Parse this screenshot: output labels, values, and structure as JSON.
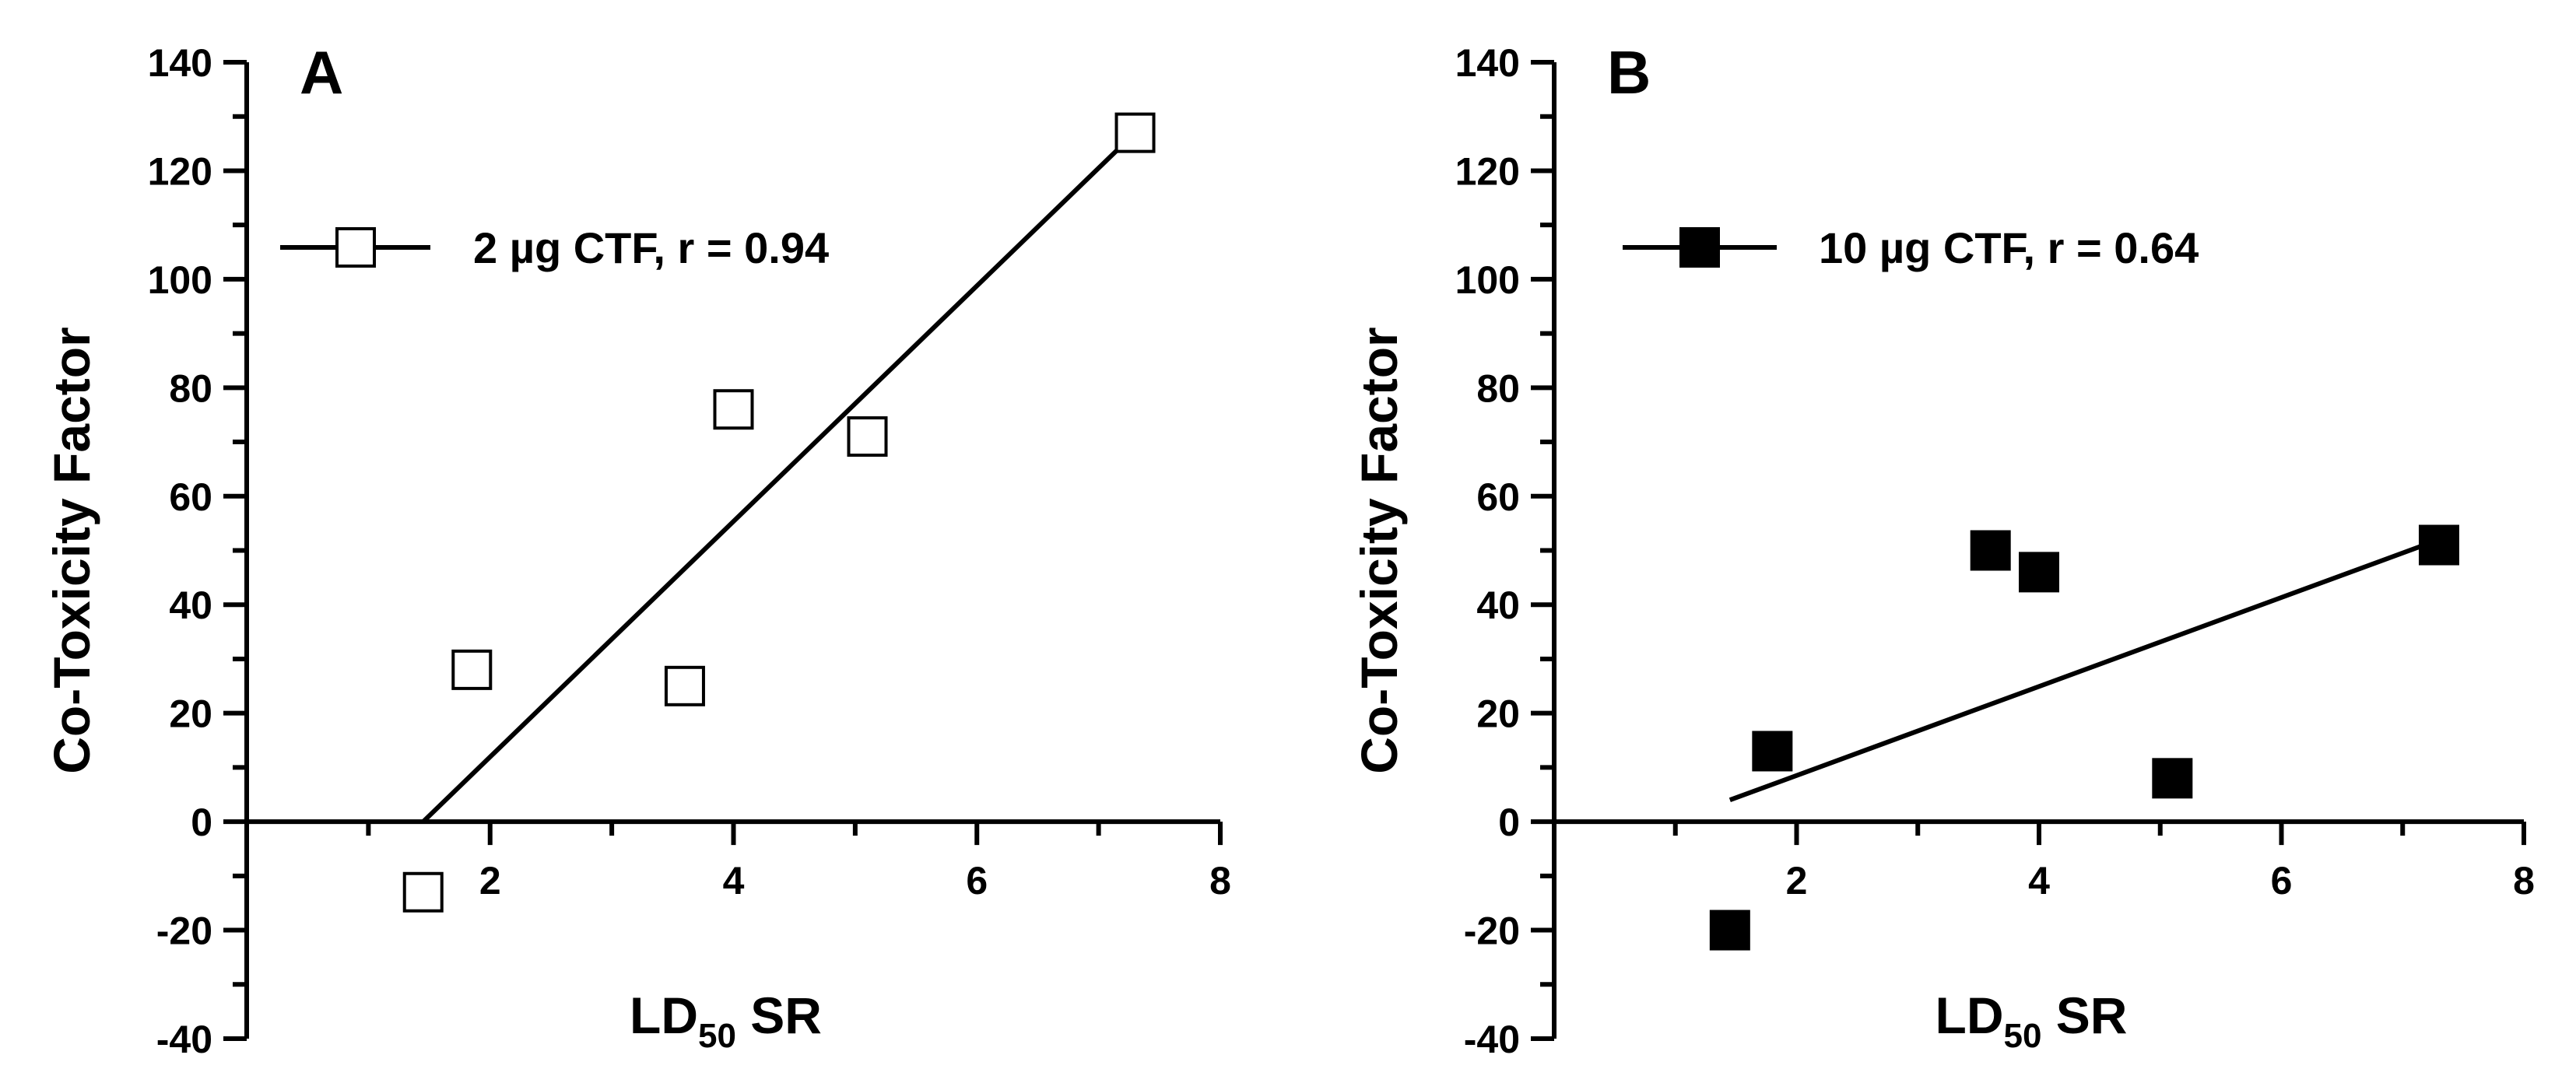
{
  "chart_data": [
    {
      "type": "scatter",
      "panel": "A",
      "xlabel_main": "LD",
      "xlabel_sub": "50",
      "xlabel_tail": " SR",
      "ylabel": "Co-Toxicity Factor",
      "xlim": [
        0,
        8
      ],
      "ylim": [
        -40,
        140
      ],
      "x_ticks": [
        2,
        4,
        6,
        8
      ],
      "y_ticks": [
        -40,
        -20,
        0,
        20,
        40,
        60,
        80,
        100,
        120,
        140
      ],
      "x_tick_labels": [
        "2",
        "4",
        "6",
        "8"
      ],
      "y_tick_labels": [
        "-40",
        "-20",
        "0",
        "20",
        "40",
        "60",
        "80",
        "100",
        "120",
        "140"
      ],
      "legend": "2 µg CTF, r = 0.94",
      "marker": "open-square",
      "points": [
        {
          "x": 1.45,
          "y": -13
        },
        {
          "x": 1.85,
          "y": 28
        },
        {
          "x": 3.6,
          "y": 25
        },
        {
          "x": 4.0,
          "y": 76
        },
        {
          "x": 5.1,
          "y": 71
        },
        {
          "x": 7.3,
          "y": 127
        }
      ],
      "fit_line": {
        "x": [
          1.45,
          7.3
        ],
        "y": [
          0,
          127
        ]
      }
    },
    {
      "type": "scatter",
      "panel": "B",
      "xlabel_main": "LD",
      "xlabel_sub": "50",
      "xlabel_tail": " SR",
      "ylabel": "Co-Toxicity Factor",
      "xlim": [
        0,
        8
      ],
      "ylim": [
        -40,
        140
      ],
      "x_ticks": [
        2,
        4,
        6,
        8
      ],
      "y_ticks": [
        -40,
        -20,
        0,
        20,
        40,
        60,
        80,
        100,
        120,
        140
      ],
      "x_tick_labels": [
        "2",
        "4",
        "6",
        "8"
      ],
      "y_tick_labels": [
        "-40",
        "-20",
        "0",
        "20",
        "40",
        "60",
        "80",
        "100",
        "120",
        "140"
      ],
      "legend": "10 µg CTF, r = 0.64",
      "marker": "filled-square",
      "points": [
        {
          "x": 1.45,
          "y": -20
        },
        {
          "x": 1.8,
          "y": 13
        },
        {
          "x": 3.6,
          "y": 50
        },
        {
          "x": 4.0,
          "y": 46
        },
        {
          "x": 5.1,
          "y": 8
        },
        {
          "x": 7.3,
          "y": 51
        }
      ],
      "fit_line": {
        "x": [
          1.45,
          7.3
        ],
        "y": [
          4,
          52
        ]
      }
    }
  ]
}
